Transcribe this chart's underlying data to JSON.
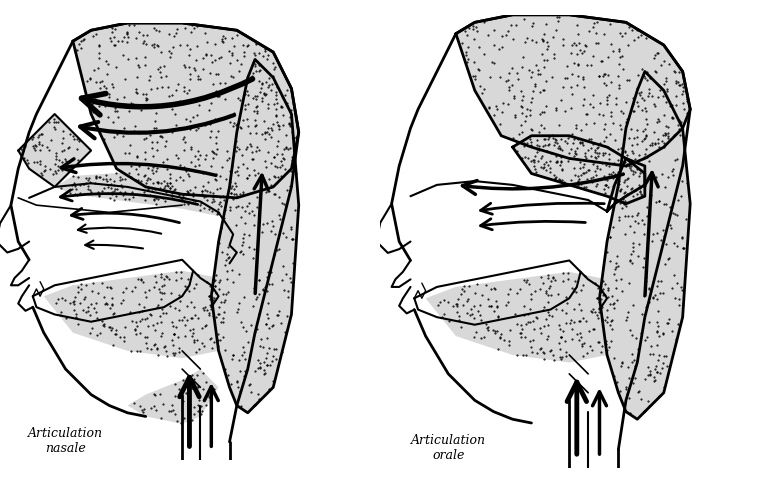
{
  "label_left": "Articulation\nnasale",
  "label_right": "Articulation\norale",
  "bg_color": "#ffffff",
  "figsize": [
    7.59,
    4.93
  ],
  "dpi": 100
}
